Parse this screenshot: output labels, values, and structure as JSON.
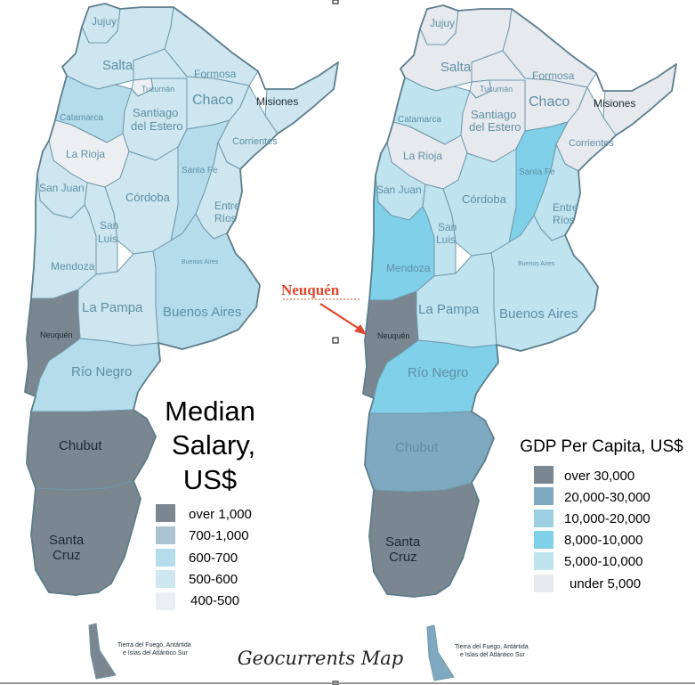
{
  "colors": {
    "over_1000": "#7a8690",
    "r700_1000": "#a9c3d0",
    "r600_700": "#b4dcea",
    "r500_600": "#cde6ef",
    "r400_500": "#eceff2",
    "gdp_over_30000": "#7a8690",
    "gdp_20000_30000": "#7fa9c0",
    "gdp_10000_20000": "#9ccfe1",
    "gdp_8000_10000": "#7fd0e8",
    "gdp_5000_10000": "#bfe3ef",
    "gdp_under_5000": "#e6eaee",
    "annotation_red": "#e2462e"
  },
  "left_map": {
    "title": [
      "Median",
      "Salary,",
      "US$"
    ],
    "legend": [
      {
        "label": "over 1,000",
        "color_key": "over_1000"
      },
      {
        "label": "700-1,000",
        "color_key": "r700_1000"
      },
      {
        "label": "600-700",
        "color_key": "r600_700"
      },
      {
        "label": "500-600",
        "color_key": "r500_600"
      },
      {
        "label": "400-500",
        "color_key": "r400_500"
      }
    ],
    "provinces": {
      "jujuy": "Jujuy",
      "salta": "Salta",
      "formosa": "Formosa",
      "tucuman": "Tucumán",
      "chaco": "Chaco",
      "misiones": "Misiones",
      "catamarca": "Catamarca",
      "santiago": [
        "Santiago",
        "del Estero"
      ],
      "corrientes": "Corrientes",
      "larioja": "La Rioja",
      "santafe": "Santa Fe",
      "sanjuan": "San Juan",
      "cordoba": "Córdoba",
      "entrerios": [
        "Entre",
        "Ríos"
      ],
      "sanluis": [
        "San",
        "Luis"
      ],
      "mendoza": "Mendoza",
      "bsas_city": "Buenos Aires",
      "lapampa": "La Pampa",
      "buenosaires": "Buenos Aires",
      "neuquen": "Neuquén",
      "rionegro": "Río Negro",
      "chubut": "Chubut",
      "santacruz": [
        "Santa",
        "Cruz"
      ],
      "tierra": [
        "Tierra del Fuego, Antártida",
        "e Islas del Atlántico Sur"
      ]
    }
  },
  "right_map": {
    "title": "GDP Per Capita, US$",
    "legend": [
      {
        "label": "over 30,000",
        "color_key": "gdp_over_30000"
      },
      {
        "label": "20,000-30,000",
        "color_key": "gdp_20000_30000"
      },
      {
        "label": "10,000-20,000",
        "color_key": "gdp_10000_20000"
      },
      {
        "label": "8,000-10,000",
        "color_key": "gdp_8000_10000"
      },
      {
        "label": "5,000-10,000",
        "color_key": "gdp_5000_10000"
      },
      {
        "label": "under 5,000",
        "color_key": "gdp_under_5000"
      }
    ],
    "provinces": {
      "jujuy": "Jujuy",
      "salta": "Salta",
      "formosa": "Formosa",
      "tucuman": "Tucumán",
      "chaco": "Chaco",
      "misiones": "Misiones",
      "catamarca": "Catamarca",
      "santiago": [
        "Santiago",
        "del Estero"
      ],
      "corrientes": "Corrientes",
      "larioja": "La Rioja",
      "santafe": "Santa Fe",
      "sanjuan": "San Juan",
      "cordoba": "Córdoba",
      "entrerios": [
        "Entre",
        "Ríos"
      ],
      "sanluis": [
        "San",
        "Luis"
      ],
      "mendoza": "Mendoza",
      "bsas_city": "Buenos Aires",
      "lapampa": "La Pampa",
      "buenosaires": "Buenos Aires",
      "neuquen": "Neuquén",
      "rionegro": "Río Negro",
      "chubut": "Chubut",
      "santacruz": [
        "Santa",
        "Cruz"
      ],
      "tierra": [
        "Tierra del Fuego, Antártida",
        "e Islas del Atlántico Sur"
      ]
    }
  },
  "annotation": {
    "label": "Neuquén"
  },
  "credit": "Geocurrents Map"
}
